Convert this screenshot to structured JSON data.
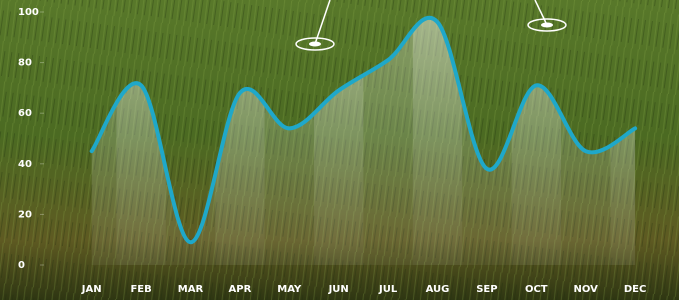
{
  "chart_data": {
    "type": "line",
    "categories": [
      "JAN",
      "FEB",
      "MAR",
      "APR",
      "MAY",
      "JUN",
      "JUL",
      "AUG",
      "SEP",
      "OCT",
      "NOV",
      "DEC"
    ],
    "values": [
      45,
      71,
      9,
      68,
      54,
      69,
      81,
      96,
      38,
      71,
      45,
      54
    ],
    "color": "#1fa8c9",
    "ylim": [
      0,
      100
    ],
    "yticks": [
      0,
      20,
      40,
      60,
      80,
      100
    ]
  }
}
